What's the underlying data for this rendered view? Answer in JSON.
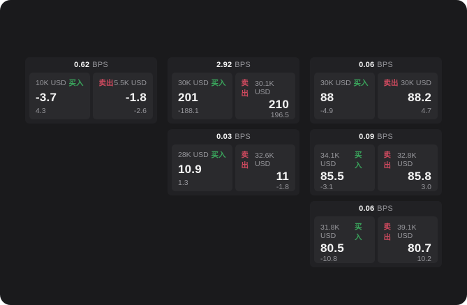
{
  "colors": {
    "container_bg": "#1a1a1c",
    "card_bg": "#212124",
    "panel_bg": "#2a2a2d",
    "text_white": "#f5f5f5",
    "text_gray": "#96969b",
    "green": "#3aa55c",
    "red": "#d04a5f"
  },
  "labels": {
    "bps_unit": "BPS",
    "buy": "买入",
    "sell": "卖出"
  },
  "cards": [
    {
      "row": 1,
      "col": 1,
      "bps": "0.62",
      "buy": {
        "amount": "10K USD",
        "price": "-3.7",
        "delta": "4.3"
      },
      "sell": {
        "amount": "5.5K USD",
        "price": "-1.8",
        "delta": "-2.6"
      }
    },
    {
      "row": 1,
      "col": 2,
      "bps": "2.92",
      "buy": {
        "amount": "30K USD",
        "price": "201",
        "delta": "-188.1"
      },
      "sell": {
        "amount": "30.1K USD",
        "price": "210",
        "delta": "196.5"
      }
    },
    {
      "row": 1,
      "col": 3,
      "bps": "0.06",
      "buy": {
        "amount": "30K USD",
        "price": "88",
        "delta": "-4.9"
      },
      "sell": {
        "amount": "30K USD",
        "price": "88.2",
        "delta": "4.7"
      }
    },
    {
      "row": 2,
      "col": 2,
      "bps": "0.03",
      "buy": {
        "amount": "28K USD",
        "price": "10.9",
        "delta": "1.3"
      },
      "sell": {
        "amount": "32.6K USD",
        "price": "11",
        "delta": "-1.8"
      }
    },
    {
      "row": 2,
      "col": 3,
      "bps": "0.09",
      "buy": {
        "amount": "34.1K USD",
        "price": "85.5",
        "delta": "-3.1"
      },
      "sell": {
        "amount": "32.8K USD",
        "price": "85.8",
        "delta": "3.0"
      }
    },
    {
      "row": 3,
      "col": 3,
      "bps": "0.06",
      "buy": {
        "amount": "31.8K USD",
        "price": "80.5",
        "delta": "-10.8"
      },
      "sell": {
        "amount": "39.1K USD",
        "price": "80.7",
        "delta": "10.2"
      }
    }
  ]
}
